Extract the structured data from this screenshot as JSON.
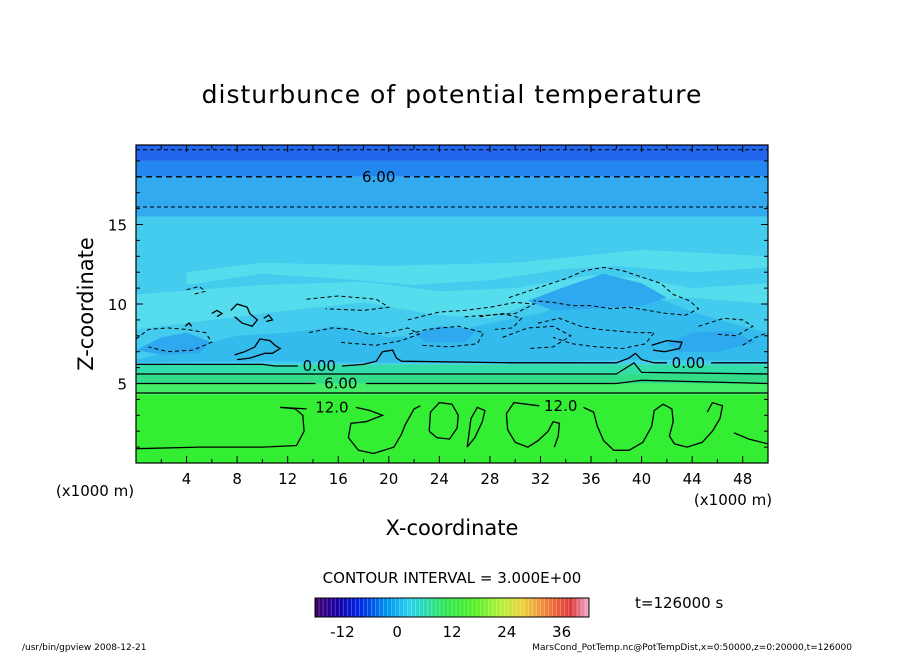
{
  "chart_data": {
    "type": "heatmap",
    "title": "disturbunce of potential temperature",
    "xlabel": "X-coordinate",
    "ylabel": "Z-coordinate",
    "x_unit": "(x1000 m)",
    "xlim": [
      0,
      50
    ],
    "ylim": [
      0,
      20
    ],
    "x_ticks": [
      "4",
      "8",
      "12",
      "16",
      "20",
      "24",
      "28",
      "32",
      "36",
      "40",
      "44",
      "48"
    ],
    "y_ticks": [
      "5",
      "10",
      "15"
    ],
    "contour_labels": [
      "6.00",
      "0.00",
      "6.00",
      "12.0",
      "12.0",
      "0.00"
    ],
    "contour_interval": "CONTOUR INTERVAL = 3.000E+00",
    "time": "t=126000 s",
    "colorbar_ticks": [
      "-12",
      "0",
      "12",
      "24",
      "36"
    ],
    "colorbar_range": [
      -18,
      42
    ],
    "bands": [
      {
        "z_from": 0.0,
        "z_to": 4.3,
        "color": "#33ee33"
      },
      {
        "z_from": 4.3,
        "z_to": 5.0,
        "color": "#44ee66"
      },
      {
        "z_from": 5.0,
        "z_to": 5.6,
        "color": "#33dd88"
      },
      {
        "z_from": 5.6,
        "z_to": 6.2,
        "color": "#33ddaa"
      },
      {
        "z_from": 6.2,
        "z_to": 15.5,
        "color": "#44ccee"
      },
      {
        "z_from": 15.5,
        "z_to": 18.0,
        "color": "#33aaf0"
      },
      {
        "z_from": 18.0,
        "z_to": 19.0,
        "color": "#2288f0"
      },
      {
        "z_from": 19.0,
        "z_to": 20.0,
        "color": "#2266ee"
      }
    ]
  },
  "footer": {
    "left": "/usr/bin/gpview   2008-12-21",
    "right": "MarsCond_PotTemp.nc@PotTempDist,x=0:50000,z=0:20000,t=126000"
  }
}
